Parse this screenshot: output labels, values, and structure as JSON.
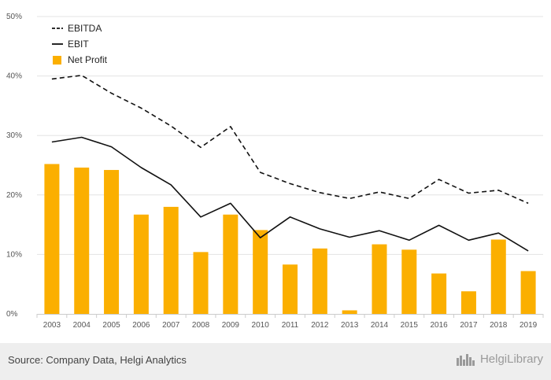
{
  "chart_data": {
    "type": "bar",
    "title": "",
    "xlabel": "",
    "ylabel": "",
    "categories": [
      "2003",
      "2004",
      "2005",
      "2006",
      "2007",
      "2008",
      "2009",
      "2010",
      "2011",
      "2012",
      "2013",
      "2014",
      "2015",
      "2016",
      "2017",
      "2018",
      "2019"
    ],
    "ylim": [
      0,
      50
    ],
    "y_ticks": [
      0,
      10,
      20,
      30,
      40,
      50
    ],
    "y_tick_labels": [
      "0%",
      "10%",
      "20%",
      "30%",
      "40%",
      "50%"
    ],
    "grid": true,
    "legend_position": "top-left",
    "series": [
      {
        "name": "EBITDA",
        "kind": "line",
        "style": "dashed",
        "color": "#111111",
        "values": [
          39.5,
          40.1,
          37.1,
          34.6,
          31.6,
          28.0,
          31.5,
          23.8,
          21.9,
          20.4,
          19.4,
          20.5,
          19.4,
          22.6,
          20.3,
          20.8,
          18.6
        ]
      },
      {
        "name": "EBIT",
        "kind": "line",
        "style": "solid",
        "color": "#111111",
        "values": [
          28.9,
          29.7,
          28.1,
          24.6,
          21.7,
          16.3,
          18.6,
          12.8,
          16.3,
          14.3,
          12.9,
          14.0,
          12.4,
          14.9,
          12.4,
          13.6,
          10.6
        ]
      },
      {
        "name": "Net Profit",
        "kind": "bar",
        "color": "#FBAF00",
        "values": [
          25.2,
          24.6,
          24.2,
          16.7,
          18.0,
          10.4,
          16.7,
          14.1,
          8.3,
          11.0,
          0.6,
          11.7,
          10.8,
          6.8,
          3.8,
          12.5,
          7.2
        ]
      }
    ]
  },
  "footer": {
    "source": "Source: Company Data, Helgi Analytics",
    "brand": "HelgiLibrary",
    "brand_icon": "city-skyline-icon"
  }
}
